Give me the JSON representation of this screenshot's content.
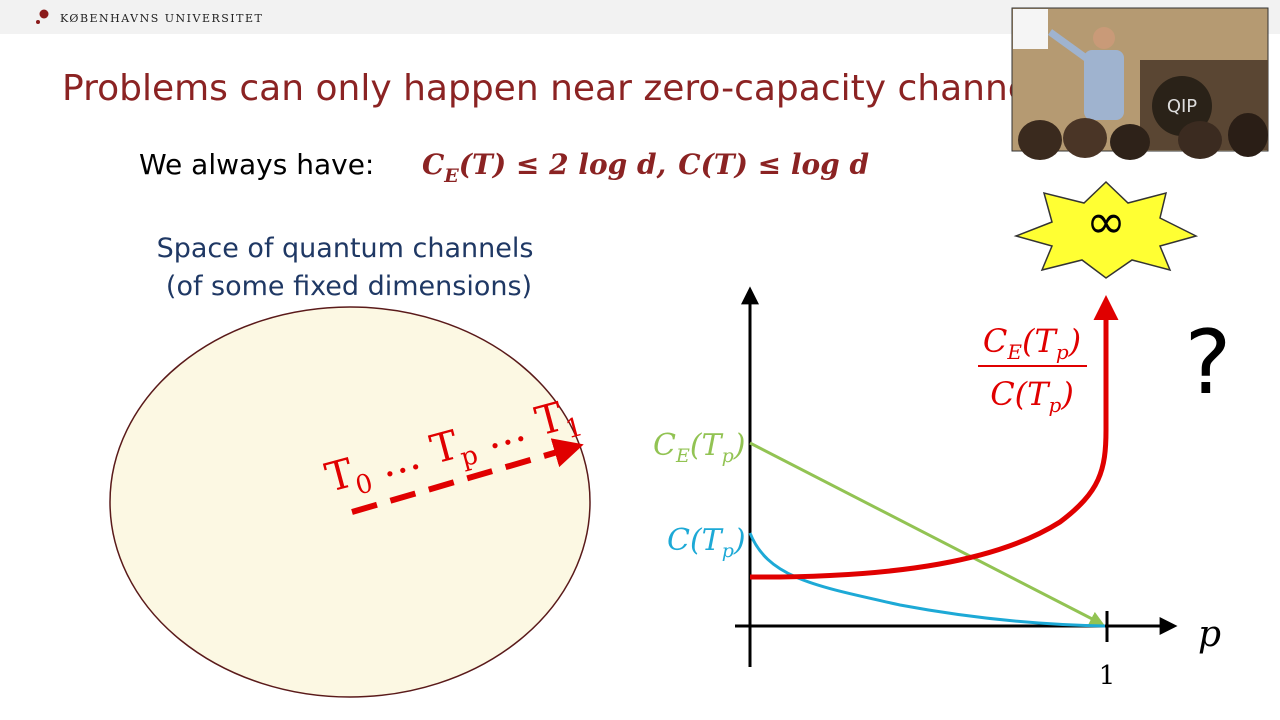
{
  "header": {
    "university": "KØBENHAVNS UNIVERSITET"
  },
  "title": "Problems can only happen near zero-capacity channels",
  "statement": {
    "lead": "We always have:",
    "f1": {
      "c": "C",
      "sub": "E",
      "rest": "(T) ≤ 2 log d"
    },
    "sep": ",",
    "f2": "C(T) ≤ log d"
  },
  "region": {
    "caption": [
      "Space of quantum channels",
      "(of some fixed dimensions)"
    ],
    "path": {
      "t0": "T",
      "s0": "0",
      "dots1": " … ",
      "tp": "T",
      "sp": "p",
      "dots2": " … ",
      "t1": "T",
      "s1": "1"
    }
  },
  "plot": {
    "ce_label": {
      "c": "C",
      "sub": "E",
      "open": "(T",
      "sub2": "p",
      "close": ")"
    },
    "c_label": {
      "c": "C",
      "open": "(T",
      "sub2": "p",
      "close": ")"
    },
    "ratio": {
      "num": {
        "c": "C",
        "sub": "E",
        "open": "(T",
        "sub2": "p",
        "close": ")"
      },
      "den": {
        "c": "C",
        "open": "(T",
        "sub2": "p",
        "close": ")"
      }
    },
    "x_label": "p",
    "tick": "1"
  },
  "callouts": {
    "infinity": "∞",
    "question": "?"
  },
  "video": {
    "logo": "QIP"
  }
}
